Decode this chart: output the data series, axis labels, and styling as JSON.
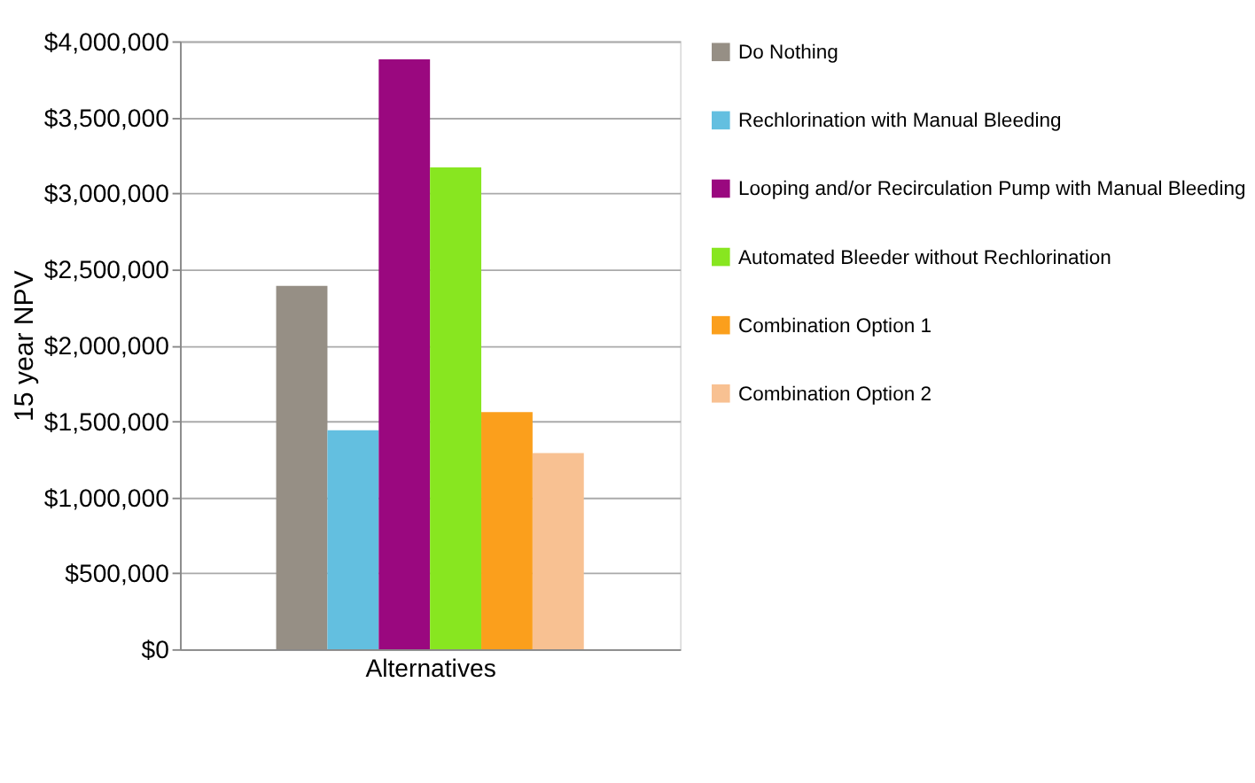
{
  "chart_data": {
    "type": "bar",
    "xlabel": "Alternatives",
    "ylabel": "15 year NPV",
    "categories": [
      null
    ],
    "series": [
      {
        "name": "Do Nothing",
        "color": "#968f85",
        "values": [
          2390000
        ]
      },
      {
        "name": "Rechlorination with Manual Bleeding",
        "color": "#63bfe0",
        "values": [
          1440000
        ]
      },
      {
        "name": "Looping and/or Recirculation Pump with Manual Bleeding",
        "color": "#9a087f",
        "values": [
          3880000
        ]
      },
      {
        "name": "Automated Bleeder without Rechlorination",
        "color": "#88e620",
        "values": [
          3170000
        ]
      },
      {
        "name": "Combination Option 1",
        "color": "#fb9f1c",
        "values": [
          1560000
        ]
      },
      {
        "name": "Combination Option 2",
        "color": "#f8c192",
        "values": [
          1290000
        ]
      }
    ],
    "ylim": [
      0,
      4000000
    ],
    "yticks": [
      {
        "value": 0,
        "label": "$0"
      },
      {
        "value": 500000,
        "label": "$500,000"
      },
      {
        "value": 1000000,
        "label": "$1,000,000"
      },
      {
        "value": 1500000,
        "label": "$1,500,000"
      },
      {
        "value": 2000000,
        "label": "$2,000,000"
      },
      {
        "value": 2500000,
        "label": "$2,500,000"
      },
      {
        "value": 3000000,
        "label": "$3,000,000"
      },
      {
        "value": 3500000,
        "label": "$3,500,000"
      },
      {
        "value": 4000000,
        "label": "$4,000,000"
      }
    ],
    "grid": "y",
    "legend": "right"
  }
}
